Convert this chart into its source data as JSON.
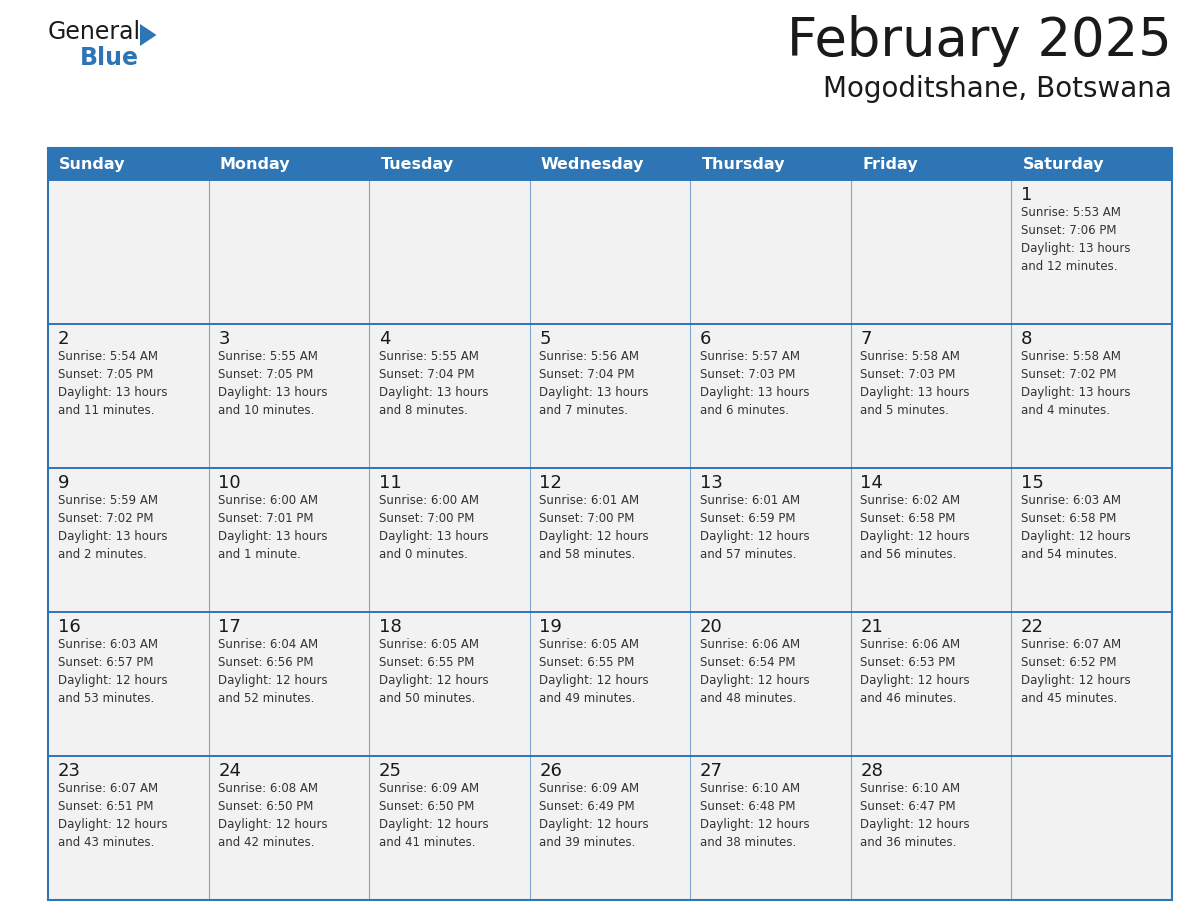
{
  "title": "February 2025",
  "subtitle": "Mogoditshane, Botswana",
  "header_bg": "#2E75B6",
  "header_text_color": "#FFFFFF",
  "cell_bg": "#F2F2F2",
  "cell_bg_white": "#FFFFFF",
  "cell_border_color": "#2E75B6",
  "day_number_color": "#1a1a1a",
  "cell_text_color": "#333333",
  "days_of_week": [
    "Sunday",
    "Monday",
    "Tuesday",
    "Wednesday",
    "Thursday",
    "Friday",
    "Saturday"
  ],
  "weeks": [
    [
      {
        "day": null,
        "info": null
      },
      {
        "day": null,
        "info": null
      },
      {
        "day": null,
        "info": null
      },
      {
        "day": null,
        "info": null
      },
      {
        "day": null,
        "info": null
      },
      {
        "day": null,
        "info": null
      },
      {
        "day": 1,
        "info": "Sunrise: 5:53 AM\nSunset: 7:06 PM\nDaylight: 13 hours\nand 12 minutes."
      }
    ],
    [
      {
        "day": 2,
        "info": "Sunrise: 5:54 AM\nSunset: 7:05 PM\nDaylight: 13 hours\nand 11 minutes."
      },
      {
        "day": 3,
        "info": "Sunrise: 5:55 AM\nSunset: 7:05 PM\nDaylight: 13 hours\nand 10 minutes."
      },
      {
        "day": 4,
        "info": "Sunrise: 5:55 AM\nSunset: 7:04 PM\nDaylight: 13 hours\nand 8 minutes."
      },
      {
        "day": 5,
        "info": "Sunrise: 5:56 AM\nSunset: 7:04 PM\nDaylight: 13 hours\nand 7 minutes."
      },
      {
        "day": 6,
        "info": "Sunrise: 5:57 AM\nSunset: 7:03 PM\nDaylight: 13 hours\nand 6 minutes."
      },
      {
        "day": 7,
        "info": "Sunrise: 5:58 AM\nSunset: 7:03 PM\nDaylight: 13 hours\nand 5 minutes."
      },
      {
        "day": 8,
        "info": "Sunrise: 5:58 AM\nSunset: 7:02 PM\nDaylight: 13 hours\nand 4 minutes."
      }
    ],
    [
      {
        "day": 9,
        "info": "Sunrise: 5:59 AM\nSunset: 7:02 PM\nDaylight: 13 hours\nand 2 minutes."
      },
      {
        "day": 10,
        "info": "Sunrise: 6:00 AM\nSunset: 7:01 PM\nDaylight: 13 hours\nand 1 minute."
      },
      {
        "day": 11,
        "info": "Sunrise: 6:00 AM\nSunset: 7:00 PM\nDaylight: 13 hours\nand 0 minutes."
      },
      {
        "day": 12,
        "info": "Sunrise: 6:01 AM\nSunset: 7:00 PM\nDaylight: 12 hours\nand 58 minutes."
      },
      {
        "day": 13,
        "info": "Sunrise: 6:01 AM\nSunset: 6:59 PM\nDaylight: 12 hours\nand 57 minutes."
      },
      {
        "day": 14,
        "info": "Sunrise: 6:02 AM\nSunset: 6:58 PM\nDaylight: 12 hours\nand 56 minutes."
      },
      {
        "day": 15,
        "info": "Sunrise: 6:03 AM\nSunset: 6:58 PM\nDaylight: 12 hours\nand 54 minutes."
      }
    ],
    [
      {
        "day": 16,
        "info": "Sunrise: 6:03 AM\nSunset: 6:57 PM\nDaylight: 12 hours\nand 53 minutes."
      },
      {
        "day": 17,
        "info": "Sunrise: 6:04 AM\nSunset: 6:56 PM\nDaylight: 12 hours\nand 52 minutes."
      },
      {
        "day": 18,
        "info": "Sunrise: 6:05 AM\nSunset: 6:55 PM\nDaylight: 12 hours\nand 50 minutes."
      },
      {
        "day": 19,
        "info": "Sunrise: 6:05 AM\nSunset: 6:55 PM\nDaylight: 12 hours\nand 49 minutes."
      },
      {
        "day": 20,
        "info": "Sunrise: 6:06 AM\nSunset: 6:54 PM\nDaylight: 12 hours\nand 48 minutes."
      },
      {
        "day": 21,
        "info": "Sunrise: 6:06 AM\nSunset: 6:53 PM\nDaylight: 12 hours\nand 46 minutes."
      },
      {
        "day": 22,
        "info": "Sunrise: 6:07 AM\nSunset: 6:52 PM\nDaylight: 12 hours\nand 45 minutes."
      }
    ],
    [
      {
        "day": 23,
        "info": "Sunrise: 6:07 AM\nSunset: 6:51 PM\nDaylight: 12 hours\nand 43 minutes."
      },
      {
        "day": 24,
        "info": "Sunrise: 6:08 AM\nSunset: 6:50 PM\nDaylight: 12 hours\nand 42 minutes."
      },
      {
        "day": 25,
        "info": "Sunrise: 6:09 AM\nSunset: 6:50 PM\nDaylight: 12 hours\nand 41 minutes."
      },
      {
        "day": 26,
        "info": "Sunrise: 6:09 AM\nSunset: 6:49 PM\nDaylight: 12 hours\nand 39 minutes."
      },
      {
        "day": 27,
        "info": "Sunrise: 6:10 AM\nSunset: 6:48 PM\nDaylight: 12 hours\nand 38 minutes."
      },
      {
        "day": 28,
        "info": "Sunrise: 6:10 AM\nSunset: 6:47 PM\nDaylight: 12 hours\nand 36 minutes."
      },
      {
        "day": null,
        "info": null
      }
    ]
  ],
  "logo_general_color": "#1a1a1a",
  "logo_blue_color": "#2E75B6",
  "fig_width": 11.88,
  "fig_height": 9.18,
  "fig_dpi": 100
}
